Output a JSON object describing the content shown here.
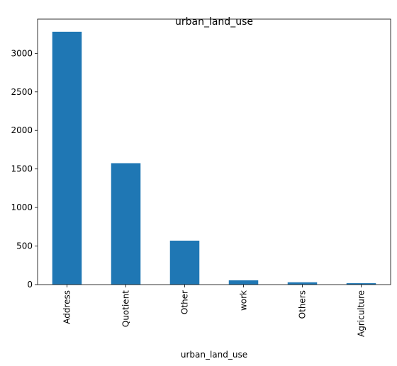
{
  "chart_data": {
    "type": "bar",
    "title": "urban_land_use",
    "xlabel": "urban_land_use",
    "ylabel": "",
    "categories": [
      "Address",
      "Quotient",
      "Other",
      "work",
      "Others",
      "Agriculture"
    ],
    "values": [
      3280,
      1575,
      570,
      55,
      30,
      18
    ],
    "ylim": [
      0,
      3444
    ],
    "yticks": [
      0,
      500,
      1000,
      1500,
      2000,
      2500,
      3000
    ],
    "bar_color": "#1f77b4",
    "grid": false,
    "legend": "none"
  }
}
